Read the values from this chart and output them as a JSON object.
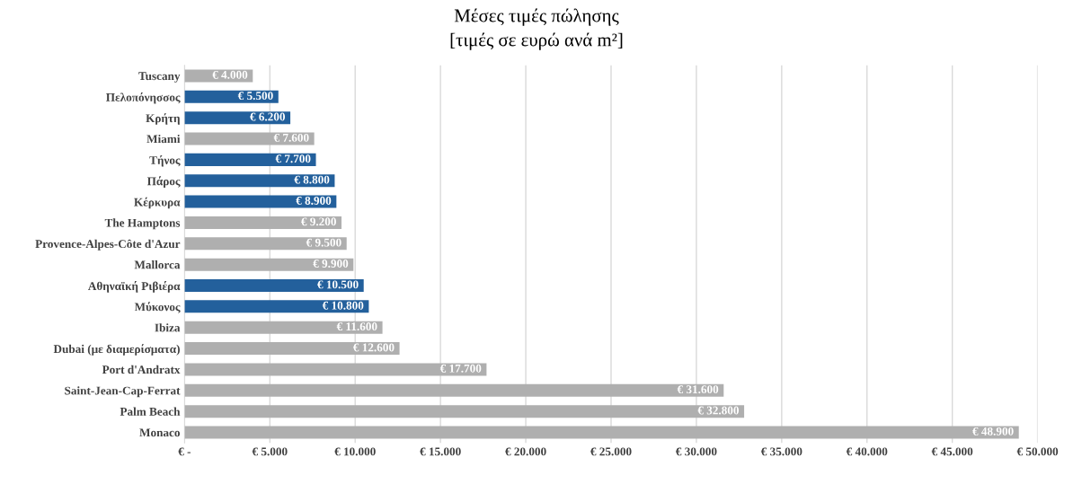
{
  "chart_data": {
    "type": "bar",
    "orientation": "horizontal",
    "title": "Μέσες τιμές πώλησης",
    "subtitle": "[τιμές σε ευρώ ανά m²]",
    "categories": [
      "Tuscany",
      "Πελοπόνησσος",
      "Κρήτη",
      "Miami",
      "Τήνος",
      "Πάρος",
      "Κέρκυρα",
      "The Hamptons",
      "Provence-Alpes-Côte d'Azur",
      "Mallorca",
      "Αθηναϊκή Ριβιέρα",
      "Μύκονος",
      "Ibiza",
      "Dubai (με διαμερίσματα)",
      "Port d'Andratx",
      "Saint-Jean-Cap-Ferrat",
      "Palm Beach",
      "Monaco"
    ],
    "values": [
      4000,
      5500,
      6200,
      7600,
      7700,
      8800,
      8900,
      9200,
      9500,
      9900,
      10500,
      10800,
      11600,
      12600,
      17700,
      31600,
      32800,
      48900
    ],
    "colors": [
      "#afafaf",
      "#23609c",
      "#23609c",
      "#afafaf",
      "#23609c",
      "#23609c",
      "#23609c",
      "#afafaf",
      "#afafaf",
      "#afafaf",
      "#23609c",
      "#23609c",
      "#afafaf",
      "#afafaf",
      "#afafaf",
      "#afafaf",
      "#afafaf",
      "#afafaf"
    ],
    "value_labels": [
      "€ 4.000",
      "€ 5.500",
      "€ 6.200",
      "€ 7.600",
      "€ 7.700",
      "€ 8.800",
      "€ 8.900",
      "€ 9.200",
      "€ 9.500",
      "€ 9.900",
      "€ 10.500",
      "€ 10.800",
      "€ 11.600",
      "€ 12.600",
      "€ 17.700",
      "€ 31.600",
      "€ 32.800",
      "€ 48.900"
    ],
    "xlim": [
      0,
      50000
    ],
    "xticks": [
      {
        "value": 0,
        "label": "€ -"
      },
      {
        "value": 5000,
        "label": "€ 5.000"
      },
      {
        "value": 10000,
        "label": "€ 10.000"
      },
      {
        "value": 15000,
        "label": "€ 15.000"
      },
      {
        "value": 20000,
        "label": "€ 20.000"
      },
      {
        "value": 25000,
        "label": "€ 25.000"
      },
      {
        "value": 30000,
        "label": "€ 30.000"
      },
      {
        "value": 35000,
        "label": "€ 35.000"
      },
      {
        "value": 40000,
        "label": "€ 40.000"
      },
      {
        "value": 45000,
        "label": "€ 45.000"
      },
      {
        "value": 50000,
        "label": "€ 50.000"
      }
    ],
    "grid": "x",
    "legend": false
  }
}
